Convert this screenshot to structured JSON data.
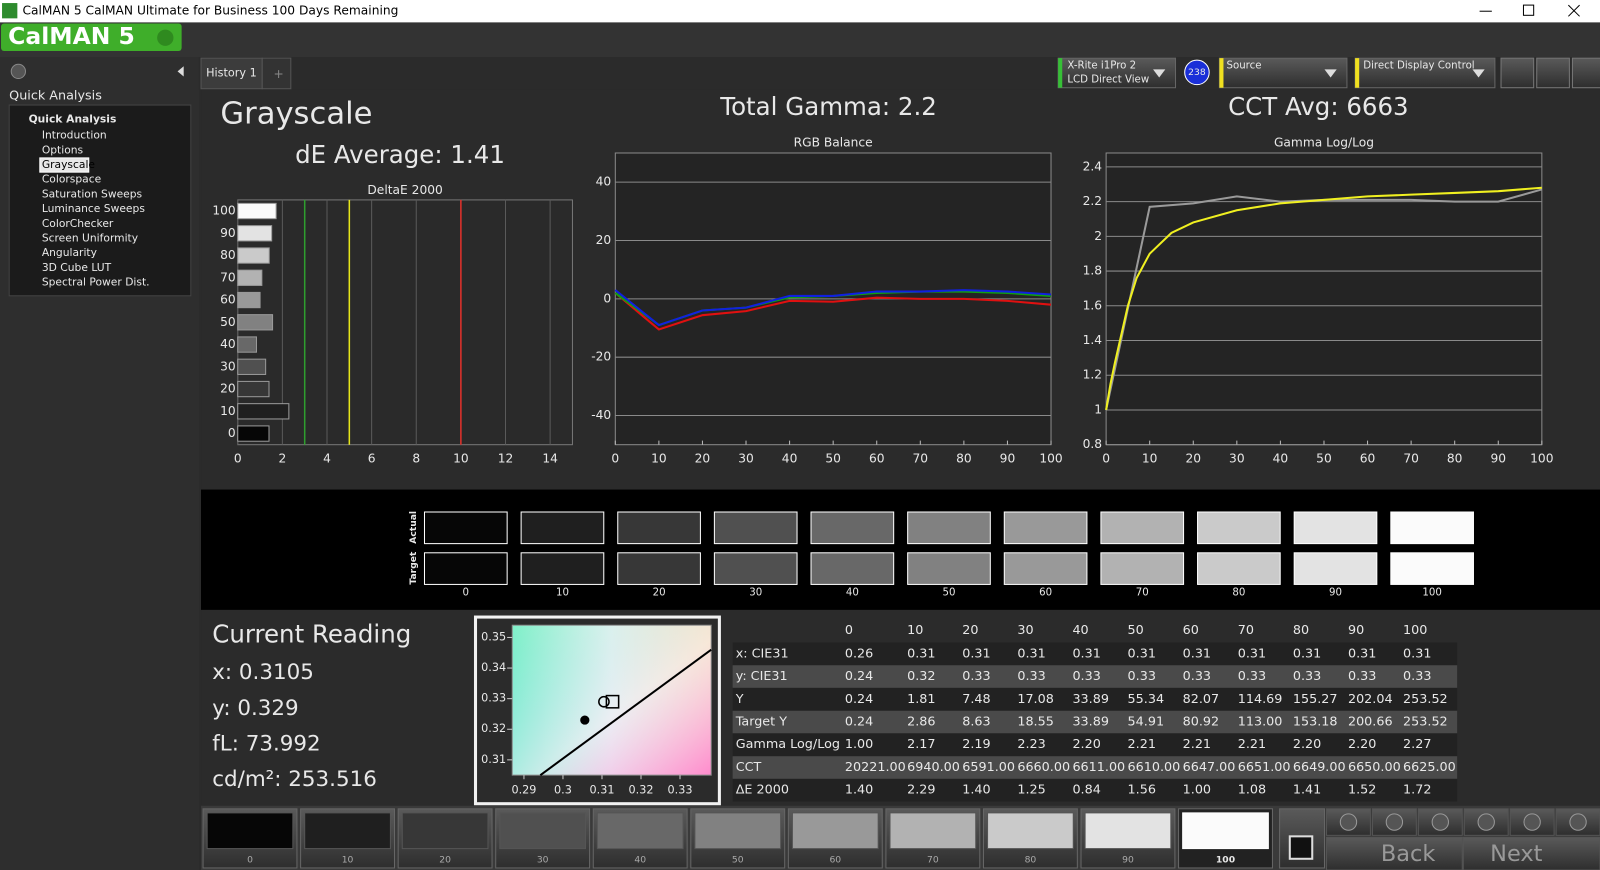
{
  "window": {
    "title": "CalMAN 5 CalMAN Ultimate for Business 100 Days Remaining",
    "logo": "CalMAN 5"
  },
  "sidebar": {
    "heading": "Quick Analysis",
    "tree_root": "Quick Analysis",
    "items": [
      "Introduction",
      "Options",
      "Grayscale",
      "Colorspace",
      "Saturation Sweeps",
      "Luminance Sweeps",
      "ColorChecker",
      "Screen Uniformity",
      "Angularity",
      "3D Cube LUT",
      "Spectral Power Dist."
    ],
    "selected": "Grayscale"
  },
  "tabs": {
    "items": [
      "History 1"
    ],
    "add": "+"
  },
  "toolbar": {
    "meter_line1": "X-Rite i1Pro 2",
    "meter_line2": "LCD Direct View",
    "meter_badge": "238",
    "source": "Source",
    "display": "Direct Display Control"
  },
  "panel": {
    "title": "Grayscale",
    "de_average": "dE Average: 1.41",
    "total_gamma": "Total Gamma: 2.2",
    "cct_avg": "CCT Avg: 6663"
  },
  "chart_data": [
    {
      "type": "bar",
      "title": "DeltaE 2000",
      "categories": [
        100,
        90,
        80,
        70,
        60,
        50,
        40,
        30,
        20,
        10,
        0
      ],
      "values": [
        1.72,
        1.52,
        1.41,
        1.08,
        1.0,
        1.56,
        0.84,
        1.25,
        1.4,
        2.29,
        1.4
      ],
      "xlim": [
        0,
        15
      ],
      "xticks": [
        0,
        2,
        4,
        6,
        8,
        10,
        12,
        14
      ],
      "grid": true,
      "thresholds": [
        {
          "value": 3,
          "color": "#2e9e2e"
        },
        {
          "value": 5,
          "color": "#e6e61a"
        },
        {
          "value": 10,
          "color": "#e0302a"
        }
      ]
    },
    {
      "type": "line",
      "title": "RGB Balance",
      "x": [
        0,
        10,
        20,
        30,
        40,
        50,
        60,
        70,
        80,
        90,
        100
      ],
      "series": [
        {
          "color": "#e01010",
          "values": [
            2,
            -10.5,
            -5.6,
            -4.2,
            -0.7,
            -1,
            0.4,
            0,
            0,
            -0.7,
            -2
          ]
        },
        {
          "color": "#10a010",
          "values": [
            2,
            -9,
            -4,
            -3,
            0.5,
            1,
            2,
            2.5,
            2.5,
            2,
            1
          ]
        },
        {
          "color": "#1020e0",
          "values": [
            3,
            -9,
            -4,
            -3,
            1,
            1,
            2.5,
            2.5,
            3,
            2.5,
            1.5
          ]
        }
      ],
      "xlim": [
        0,
        100
      ],
      "xticks": [
        0,
        10,
        20,
        30,
        40,
        50,
        60,
        70,
        80,
        90,
        100
      ],
      "ylim": [
        -50,
        50
      ],
      "yticks": [
        40,
        20,
        0,
        -20,
        -40
      ],
      "grid": true
    },
    {
      "type": "line",
      "title": "Gamma Log/Log",
      "series": [
        {
          "color": "#9a9a9a",
          "x": [
            0,
            10,
            20,
            30,
            40,
            50,
            60,
            70,
            80,
            90,
            100
          ],
          "values": [
            1.0,
            2.17,
            2.19,
            2.23,
            2.2,
            2.21,
            2.21,
            2.21,
            2.2,
            2.2,
            2.27
          ]
        },
        {
          "color": "#f0f020",
          "x": [
            0,
            1,
            2,
            3,
            5,
            7,
            10,
            15,
            20,
            30,
            40,
            50,
            60,
            70,
            80,
            90,
            100
          ],
          "values": [
            1.0,
            1.15,
            1.27,
            1.38,
            1.6,
            1.76,
            1.9,
            2.02,
            2.08,
            2.15,
            2.19,
            2.21,
            2.23,
            2.24,
            2.25,
            2.26,
            2.28
          ]
        }
      ],
      "xlim": [
        0,
        100
      ],
      "xticks": [
        0,
        10,
        20,
        30,
        40,
        50,
        60,
        70,
        80,
        90,
        100
      ],
      "ylim": [
        0.8,
        2.48
      ],
      "yticks": [
        0.8,
        1,
        1.2,
        1.4,
        1.6,
        1.8,
        2,
        2.2,
        2.4
      ],
      "grid": true
    },
    {
      "type": "scatter",
      "xlim": [
        0.287,
        0.338
      ],
      "xticks": [
        0.29,
        0.3,
        0.31,
        0.32,
        0.33
      ],
      "ylim": [
        0.305,
        0.354
      ],
      "yticks": [
        0.31,
        0.32,
        0.33,
        0.34,
        0.35
      ],
      "series": [
        {
          "marker": "line",
          "color": "#000000",
          "x": [
            0.2942,
            0.338
          ],
          "values": [
            0.305,
            0.346
          ]
        },
        {
          "marker": "dot",
          "color": "#000000",
          "x": [
            0.3056
          ],
          "values": [
            0.323
          ]
        },
        {
          "marker": "circle",
          "color": "#000000",
          "x": [
            0.3105
          ],
          "values": [
            0.329
          ]
        },
        {
          "marker": "square",
          "color": "#000000",
          "x": [
            0.3127
          ],
          "values": [
            0.329
          ]
        }
      ]
    }
  ],
  "swatches": {
    "actual": "Actual",
    "target": "Target",
    "levels": [
      0,
      10,
      20,
      30,
      40,
      50,
      60,
      70,
      80,
      90,
      100
    ]
  },
  "reading": {
    "title": "Current Reading",
    "x": "x: 0.3105",
    "y": "y: 0.329",
    "fl": "fL: 73.992",
    "cdm2": "cd/m²: 253.516"
  },
  "table": {
    "header": [
      "0",
      "10",
      "20",
      "30",
      "40",
      "50",
      "60",
      "70",
      "80",
      "90",
      "100"
    ],
    "rows": [
      {
        "label": "x: CIE31",
        "cells": [
          "0.26",
          "0.31",
          "0.31",
          "0.31",
          "0.31",
          "0.31",
          "0.31",
          "0.31",
          "0.31",
          "0.31",
          "0.31"
        ]
      },
      {
        "label": "y: CIE31",
        "cells": [
          "0.24",
          "0.32",
          "0.33",
          "0.33",
          "0.33",
          "0.33",
          "0.33",
          "0.33",
          "0.33",
          "0.33",
          "0.33"
        ]
      },
      {
        "label": "Y",
        "cells": [
          "0.24",
          "1.81",
          "7.48",
          "17.08",
          "33.89",
          "55.34",
          "82.07",
          "114.69",
          "155.27",
          "202.04",
          "253.52"
        ]
      },
      {
        "label": "Target Y",
        "cells": [
          "0.24",
          "2.86",
          "8.63",
          "18.55",
          "33.89",
          "54.91",
          "80.92",
          "113.00",
          "153.18",
          "200.66",
          "253.52"
        ]
      },
      {
        "label": "Gamma Log/Log",
        "cells": [
          "1.00",
          "2.17",
          "2.19",
          "2.23",
          "2.20",
          "2.21",
          "2.21",
          "2.21",
          "2.20",
          "2.20",
          "2.27"
        ]
      },
      {
        "label": "CCT",
        "cells": [
          "20221.00",
          "6940.00",
          "6591.00",
          "6660.00",
          "6611.00",
          "6610.00",
          "6647.00",
          "6651.00",
          "6649.00",
          "6650.00",
          "6625.00"
        ]
      },
      {
        "label": "ΔE 2000",
        "cells": [
          "1.40",
          "2.29",
          "1.40",
          "1.25",
          "0.84",
          "1.56",
          "1.00",
          "1.08",
          "1.41",
          "1.52",
          "1.72"
        ]
      }
    ]
  },
  "bottom": {
    "levels": [
      0,
      10,
      20,
      30,
      40,
      50,
      60,
      70,
      80,
      90,
      100
    ],
    "active": 100,
    "back": "Back",
    "next": "Next"
  }
}
